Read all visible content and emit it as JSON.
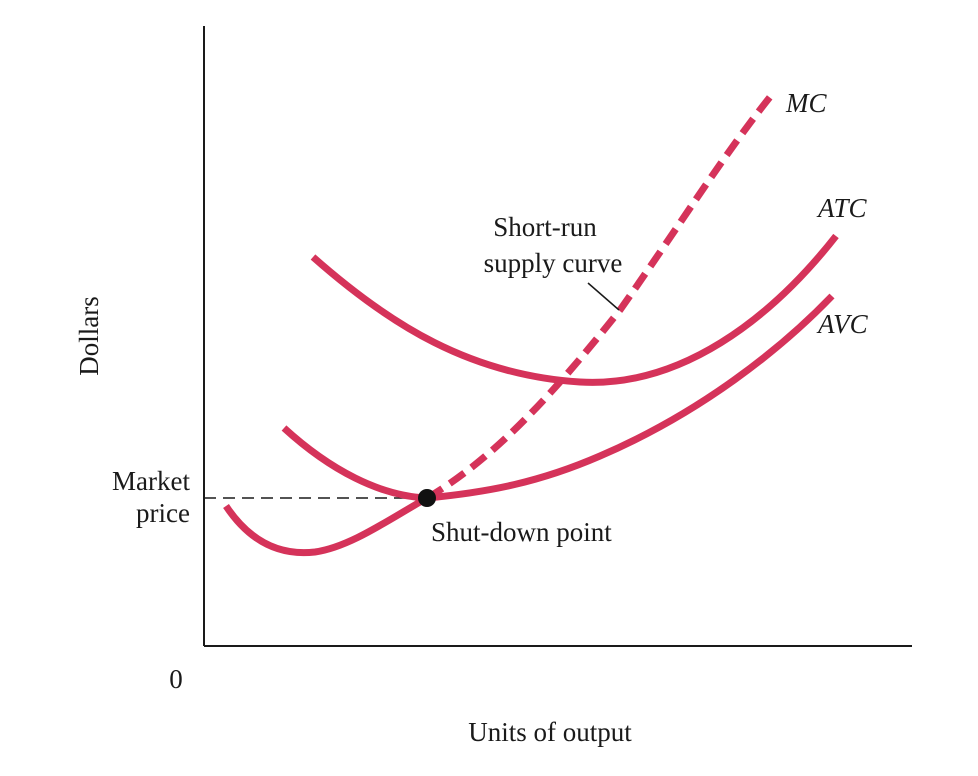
{
  "chart_data": {
    "type": "line",
    "title": "",
    "xlabel": "Units of output",
    "ylabel": "Dollars",
    "origin_label": "0",
    "xlim": [
      0,
      10
    ],
    "ylim": [
      0,
      10
    ],
    "grid": false,
    "legend": "none",
    "curve_color": "#d5335a",
    "series": [
      {
        "name": "AVC",
        "style": "solid",
        "points": [
          [
            0.3,
            2.2
          ],
          [
            0.7,
            1.5
          ],
          [
            1.5,
            1.5
          ],
          [
            3.2,
            2.35
          ],
          [
            5.0,
            2.8
          ],
          [
            7.0,
            4.0
          ],
          [
            8.9,
            5.5
          ]
        ]
      },
      {
        "name": "ATC",
        "style": "solid",
        "points": [
          [
            1.5,
            6.2
          ],
          [
            3.0,
            5.0
          ],
          [
            5.2,
            4.2
          ],
          [
            7.0,
            4.6
          ],
          [
            8.9,
            6.5
          ]
        ]
      },
      {
        "name": "MC",
        "style": "solid-then-dashed",
        "points": [
          [
            1.1,
            3.5
          ],
          [
            1.9,
            2.75
          ],
          [
            3.2,
            2.35
          ],
          [
            5.0,
            4.2
          ],
          [
            6.5,
            6.8
          ],
          [
            8.0,
            9.0
          ]
        ],
        "dashed_from_x": 3.2
      }
    ],
    "annotations": {
      "market_price": {
        "label_line1": "Market",
        "label_line2": "price",
        "y": 2.35
      },
      "shutdown_point": {
        "label": "Shut-down point",
        "x": 3.2,
        "y": 2.35
      },
      "supply_curve": {
        "label_line1": "Short-run",
        "label_line2": "supply curve"
      }
    }
  }
}
